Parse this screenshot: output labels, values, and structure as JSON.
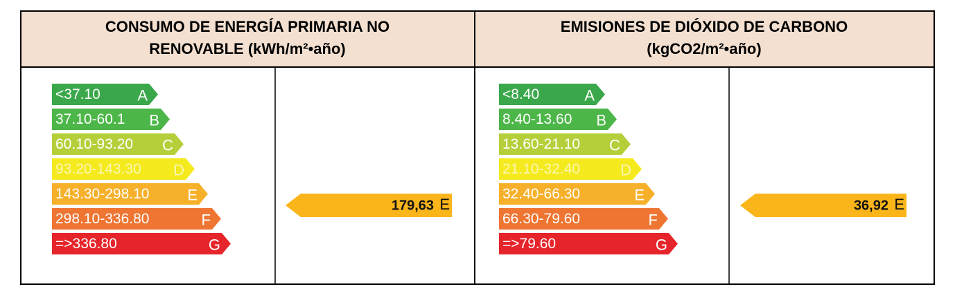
{
  "panels": [
    {
      "title_lines": [
        "CONSUMO  DE ENERGÍA PRIMARIA NO",
        "RENOVABLE (kWh/m²•año)"
      ],
      "ratings": [
        {
          "range": "<37.10",
          "letter": "A",
          "color": "#3aa84a"
        },
        {
          "range": "37.10-60.1",
          "letter": "B",
          "color": "#4cb748"
        },
        {
          "range": "60.10-93.20",
          "letter": "C",
          "color": "#b5cf3a"
        },
        {
          "range": "93.20-143.30",
          "letter": "D",
          "color": "#f4ea1e"
        },
        {
          "range": "143.30-298.10",
          "letter": "E",
          "color": "#f6b02a"
        },
        {
          "range": "298.10-336.80",
          "letter": "F",
          "color": "#ee7532"
        },
        {
          "range": "=>336.80",
          "letter": "G",
          "color": "#e5252b"
        }
      ],
      "result": {
        "value": "179,63",
        "letter": "E",
        "color": "#f9b51a"
      }
    },
    {
      "title_lines": [
        "EMISIONES DE DIÓXIDO DE CARBONO",
        "(kgCO2/m²•año)"
      ],
      "ratings": [
        {
          "range": "<8.40",
          "letter": "A",
          "color": "#3aa84a"
        },
        {
          "range": "8.40-13.60",
          "letter": "B",
          "color": "#4cb748"
        },
        {
          "range": "13.60-21.10",
          "letter": "C",
          "color": "#b5cf3a"
        },
        {
          "range": "21.10-32.40",
          "letter": "D",
          "color": "#f4ea1e"
        },
        {
          "range": "32.40-66.30",
          "letter": "E",
          "color": "#f6b02a"
        },
        {
          "range": "66.30-79.60",
          "letter": "F",
          "color": "#ee7532"
        },
        {
          "range": "=>79.60",
          "letter": "G",
          "color": "#e5252b"
        }
      ],
      "result": {
        "value": "36,92",
        "letter": "E",
        "color": "#f9b51a"
      }
    }
  ]
}
